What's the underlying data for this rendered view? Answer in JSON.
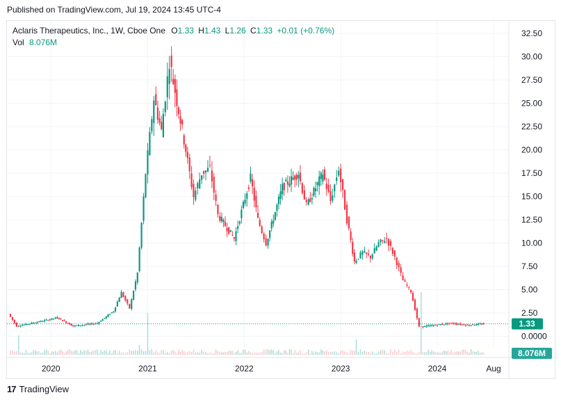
{
  "published": "Published on TradingView.com, Jul 19, 2024 13:45 UTC-4",
  "legend": {
    "name": "Aclaris Therapeutics, Inc., 1W, Cboe One",
    "o_label": "O",
    "o_value": "1.33",
    "h_label": "H",
    "h_value": "1.43",
    "l_label": "L",
    "l_value": "1.26",
    "c_label": "C",
    "c_value": "1.33",
    "change": "+0.01 (+0.76%)",
    "vol_label": "Vol",
    "vol_value": "8.076M"
  },
  "footer": {
    "brand": "TradingView",
    "logo": "17"
  },
  "colors": {
    "up": "#089981",
    "down": "#f23645",
    "price_badge": "#089981",
    "vol_badge": "#26a69a"
  },
  "chart_data": {
    "type": "candlestick",
    "timeframe": "1W",
    "price_axis_labels": [
      "32.50",
      "30.00",
      "27.50",
      "25.00",
      "22.50",
      "20.00",
      "17.50",
      "15.00",
      "12.50",
      "10.00",
      "7.50",
      "5.00",
      "2.50",
      "0.0000"
    ],
    "price_range": [
      0,
      33.5
    ],
    "time_axis_labels": [
      "2020",
      "2021",
      "2022",
      "2023",
      "2024",
      "Aug"
    ],
    "last_price": "1.33",
    "last_volume": "8.076M",
    "grid": true,
    "price_path": [
      [
        "2019-08",
        2.4
      ],
      [
        "2019-09",
        1.1
      ],
      [
        "2019-12",
        1.6
      ],
      [
        "2020-02",
        2.0
      ],
      [
        "2020-04",
        1.1
      ],
      [
        "2020-07",
        1.4
      ],
      [
        "2020-09",
        2.7
      ],
      [
        "2020-10",
        4.7
      ],
      [
        "2020-11",
        3.0
      ],
      [
        "2020-12",
        6.8
      ],
      [
        "2021-01",
        17.5
      ],
      [
        "2021-02",
        25.5
      ],
      [
        "2021-03",
        22.0
      ],
      [
        "2021-04",
        29.5
      ],
      [
        "2021-06",
        20.0
      ],
      [
        "2021-07",
        15.0
      ],
      [
        "2021-08",
        17.5
      ],
      [
        "2021-09",
        18.0
      ],
      [
        "2021-10",
        13.0
      ],
      [
        "2021-12",
        10.5
      ],
      [
        "2022-02",
        17.0
      ],
      [
        "2022-03",
        12.5
      ],
      [
        "2022-04",
        10.0
      ],
      [
        "2022-06",
        16.0
      ],
      [
        "2022-08",
        17.5
      ],
      [
        "2022-09",
        14.0
      ],
      [
        "2022-11",
        17.5
      ],
      [
        "2022-12",
        14.5
      ],
      [
        "2023-01",
        18.0
      ],
      [
        "2023-02",
        12.5
      ],
      [
        "2023-03",
        8.0
      ],
      [
        "2023-04",
        9.0
      ],
      [
        "2023-05",
        8.5
      ],
      [
        "2023-06",
        10.0
      ],
      [
        "2023-07",
        10.5
      ],
      [
        "2023-08",
        8.5
      ],
      [
        "2023-09",
        6.0
      ],
      [
        "2023-10",
        4.8
      ],
      [
        "2023-11",
        1.0
      ],
      [
        "2024-01",
        1.2
      ],
      [
        "2024-03",
        1.4
      ],
      [
        "2024-05",
        1.2
      ],
      [
        "2024-07",
        1.33
      ]
    ]
  }
}
